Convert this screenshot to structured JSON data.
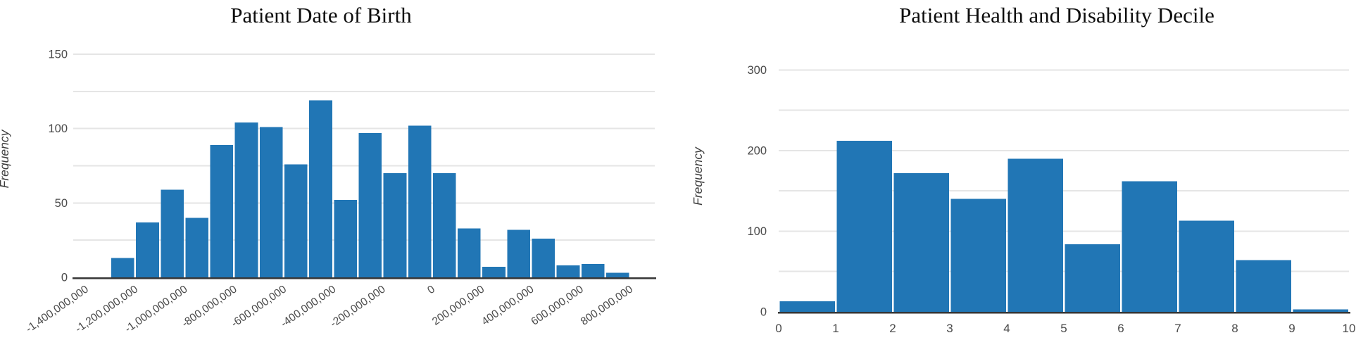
{
  "page": {
    "background": "#ffffff"
  },
  "styles": {
    "bar_fill": "#2176b5",
    "grid_color": "#e5e5e5",
    "axis_line_color": "#373737",
    "tick_label_color": "#4a4a4a",
    "axis_label_color": "#3d3d3d",
    "title_color": "#0d0d0d"
  },
  "chart_data": [
    {
      "type": "bar",
      "title": "Patient Date of Birth",
      "xlabel": "",
      "ylabel": "Frequency",
      "bin_start": -1300000000,
      "bin_width": 100000000,
      "values": [
        13,
        37,
        59,
        40,
        89,
        104,
        101,
        76,
        119,
        52,
        97,
        70,
        102,
        70,
        33,
        7,
        32,
        26,
        8,
        9,
        3
      ],
      "xlim": [
        -1450000000,
        900000000
      ],
      "ylim": [
        0,
        159
      ],
      "x_ticks": [
        -1400000000,
        -1200000000,
        -1000000000,
        -800000000,
        -600000000,
        -400000000,
        -200000000,
        0,
        200000000,
        400000000,
        600000000,
        800000000
      ],
      "x_tick_labels": [
        "-1,400,000,000",
        "-1,200,000,000",
        "-1,000,000,000",
        "-800,000,000",
        "-600,000,000",
        "-400,000,000",
        "-200,000,000",
        "0",
        "200,000,000",
        "400,000,000",
        "600,000,000",
        "800,000,000"
      ],
      "x_tick_rotation": -35,
      "y_ticks": [
        0,
        50,
        100,
        150
      ],
      "y_tick_labels": [
        "0",
        "50",
        "100",
        "150"
      ],
      "y_grid_step": 25,
      "grid": true,
      "legend": false
    },
    {
      "type": "bar",
      "title": "Patient Health and Disability Decile",
      "xlabel": "",
      "ylabel": "Frequency",
      "bin_start": 0,
      "bin_width": 1,
      "values": [
        13,
        212,
        172,
        140,
        190,
        84,
        162,
        113,
        64,
        3
      ],
      "xlim": [
        0,
        10
      ],
      "ylim": [
        0,
        336
      ],
      "x_ticks": [
        0,
        1,
        2,
        3,
        4,
        5,
        6,
        7,
        8,
        9,
        10
      ],
      "x_tick_labels": [
        "0",
        "1",
        "2",
        "3",
        "4",
        "5",
        "6",
        "7",
        "8",
        "9",
        "10"
      ],
      "x_tick_rotation": 0,
      "y_ticks": [
        0,
        100,
        200,
        300
      ],
      "y_tick_labels": [
        "0",
        "100",
        "200",
        "300"
      ],
      "y_grid_step": 50,
      "grid": true,
      "legend": false
    }
  ]
}
